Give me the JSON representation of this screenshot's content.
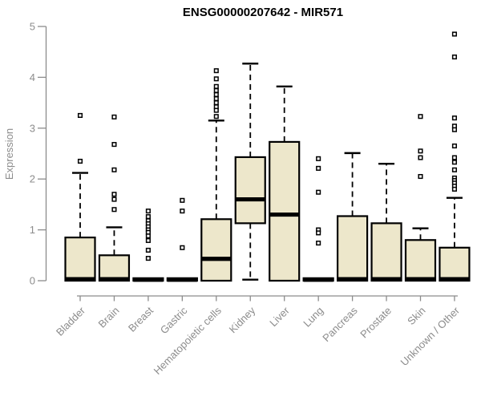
{
  "title": "ENSG00000207642 - MIR571",
  "chart_data": {
    "type": "boxplot",
    "title": "ENSG00000207642 - MIR571",
    "xlabel": "",
    "ylabel": "Expression",
    "ylim": [
      0,
      5
    ],
    "yticks": [
      "0",
      "1",
      "2",
      "3",
      "4",
      "5"
    ],
    "grid": false,
    "legend": "none",
    "categories": [
      "Bladder",
      "Brain",
      "Breast",
      "Gastric",
      "Hematopoietic cells",
      "Kidney",
      "Liver",
      "Lung",
      "Pancreas",
      "Prostate",
      "Skin",
      "Unknown / Other"
    ],
    "boxes": [
      {
        "category": "Bladder",
        "whisker_low": 0,
        "q1": 0,
        "median": 0.03,
        "q3": 0.85,
        "whisker_high": 2.12,
        "outliers": [
          3.25,
          2.35
        ]
      },
      {
        "category": "Brain",
        "whisker_low": 0,
        "q1": 0,
        "median": 0.03,
        "q3": 0.5,
        "whisker_high": 1.05,
        "outliers": [
          3.22,
          2.68,
          2.18,
          1.7,
          1.6,
          1.4
        ]
      },
      {
        "category": "Breast",
        "whisker_low": 0,
        "q1": 0,
        "median": 0.02,
        "q3": 0.05,
        "whisker_high": 0.05,
        "outliers": [
          1.37,
          1.26,
          1.18,
          1.12,
          1.06,
          1.0,
          0.95,
          0.88,
          0.79,
          0.6,
          0.44
        ]
      },
      {
        "category": "Gastric",
        "whisker_low": 0,
        "q1": 0,
        "median": 0.02,
        "q3": 0.05,
        "whisker_high": 0.05,
        "outliers": [
          1.58,
          1.37,
          0.65
        ]
      },
      {
        "category": "Hematopoietic cells",
        "whisker_low": 0,
        "q1": 0,
        "median": 0.43,
        "q3": 1.21,
        "whisker_high": 3.15,
        "outliers": [
          4.13,
          3.97,
          3.82,
          3.74,
          3.66,
          3.58,
          3.5,
          3.42,
          3.35,
          3.23
        ]
      },
      {
        "category": "Kidney",
        "whisker_low": 0.02,
        "q1": 1.13,
        "median": 1.6,
        "q3": 2.43,
        "whisker_high": 4.27,
        "outliers": []
      },
      {
        "category": "Liver",
        "whisker_low": 0,
        "q1": 0,
        "median": 1.3,
        "q3": 2.73,
        "whisker_high": 3.82,
        "outliers": []
      },
      {
        "category": "Lung",
        "whisker_low": 0,
        "q1": 0,
        "median": 0.02,
        "q3": 0.05,
        "whisker_high": 0.05,
        "outliers": [
          2.4,
          2.21,
          1.74,
          1.0,
          0.94,
          0.74
        ]
      },
      {
        "category": "Pancreas",
        "whisker_low": 0,
        "q1": 0,
        "median": 0.03,
        "q3": 1.27,
        "whisker_high": 2.51,
        "outliers": []
      },
      {
        "category": "Prostate",
        "whisker_low": 0,
        "q1": 0,
        "median": 0.03,
        "q3": 1.13,
        "whisker_high": 2.3,
        "outliers": []
      },
      {
        "category": "Skin",
        "whisker_low": 0,
        "q1": 0,
        "median": 0.03,
        "q3": 0.8,
        "whisker_high": 1.03,
        "outliers": [
          3.23,
          2.55,
          2.42,
          2.05
        ]
      },
      {
        "category": "Unknown / Other",
        "whisker_low": 0,
        "q1": 0,
        "median": 0.03,
        "q3": 0.65,
        "whisker_high": 1.63,
        "outliers": [
          4.85,
          4.4,
          3.2,
          3.04,
          2.97,
          2.65,
          2.42,
          2.33,
          2.18,
          2.02,
          1.97,
          1.92,
          1.86,
          1.8
        ]
      }
    ],
    "colors": {
      "box_fill": "#ede7cb",
      "box_stroke": "#000000",
      "median": "#000000",
      "whisker": "#000000",
      "outlier_stroke": "#000000",
      "outlier_fill": "#ffffff",
      "axis": "#8c8c8c",
      "tick_label": "#8c8c8c",
      "title": "#000000",
      "background": "#ffffff"
    }
  }
}
